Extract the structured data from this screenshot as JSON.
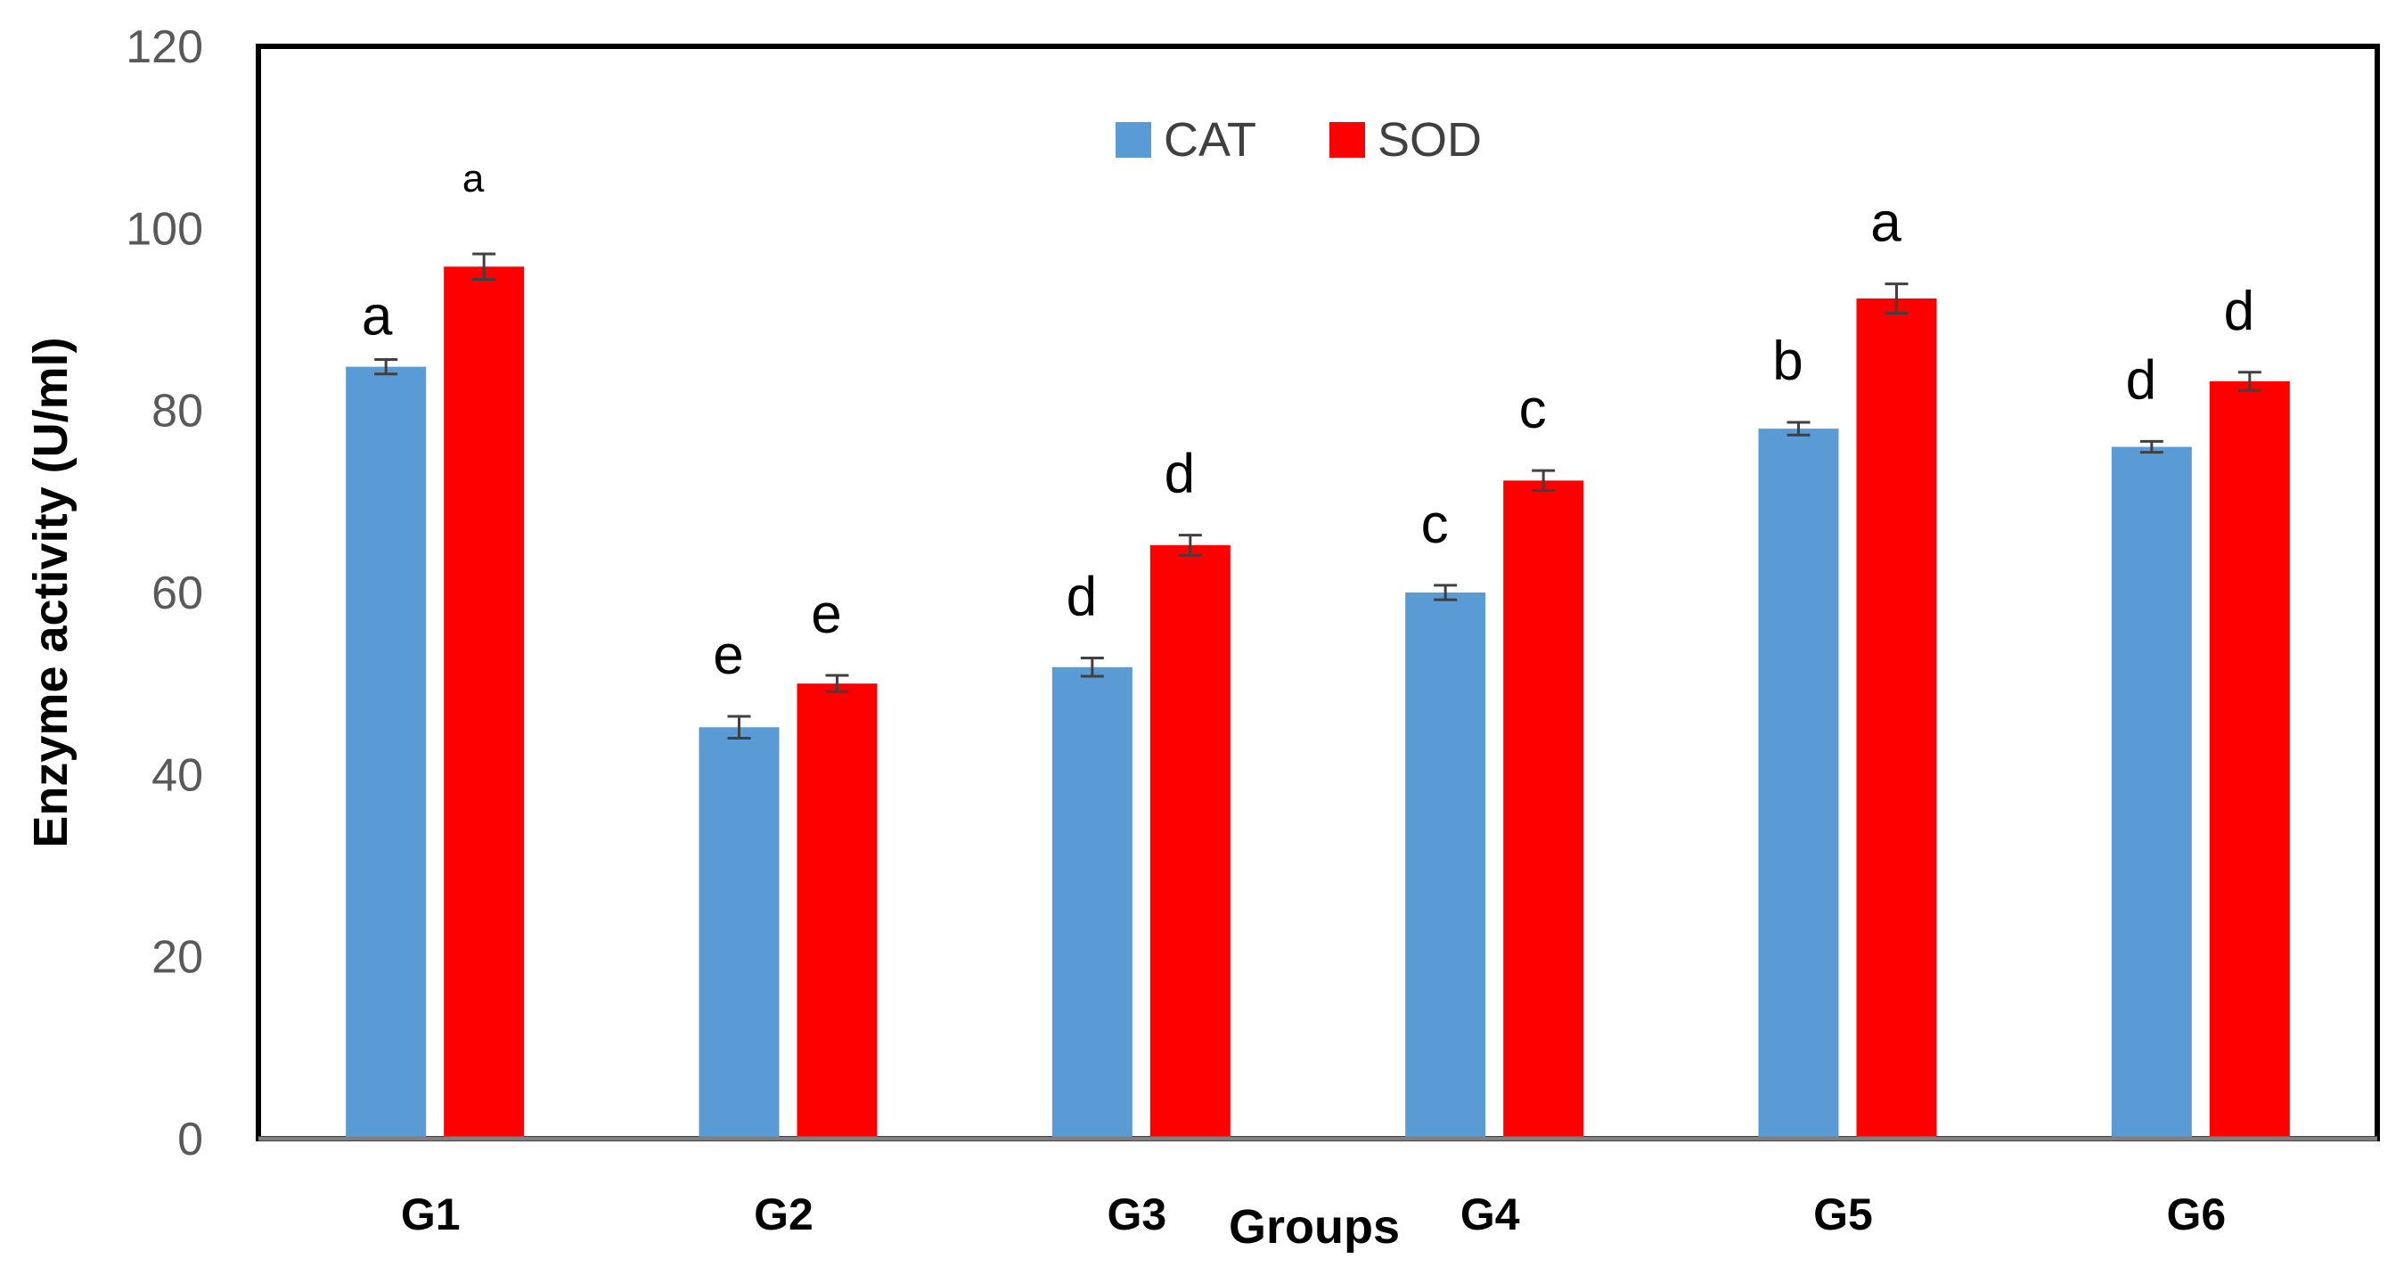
{
  "chart_data": {
    "type": "bar",
    "title": "",
    "xlabel": "Groups",
    "ylabel": "Enzyme activity (U/ml)",
    "ylim": [
      0,
      120
    ],
    "yticks": [
      0,
      20,
      40,
      60,
      80,
      100,
      120
    ],
    "yticks_text": [
      "0",
      "20",
      "40",
      "60",
      "80",
      "100",
      "120"
    ],
    "grid": false,
    "legend_position": "top-center",
    "categories": [
      "G1",
      "G2",
      "G3",
      "G4",
      "G5",
      "G6"
    ],
    "series": [
      {
        "name": "CAT",
        "color": "#5B9BD5",
        "values": [
          84.8,
          45.2,
          51.8,
          60.0,
          78.0,
          76.0
        ],
        "errors": [
          0.8,
          1.2,
          1.0,
          0.8,
          0.7,
          0.6
        ],
        "letters": [
          "a",
          "e",
          "d",
          "c",
          "b",
          "d"
        ]
      },
      {
        "name": "SOD",
        "color": "#FF0000",
        "values": [
          95.8,
          50.0,
          65.2,
          72.3,
          92.3,
          83.2
        ],
        "errors": [
          1.4,
          0.9,
          1.1,
          1.1,
          1.6,
          1.0
        ],
        "letters": [
          "a",
          "e",
          "d",
          "c",
          "a",
          "d"
        ]
      }
    ]
  }
}
